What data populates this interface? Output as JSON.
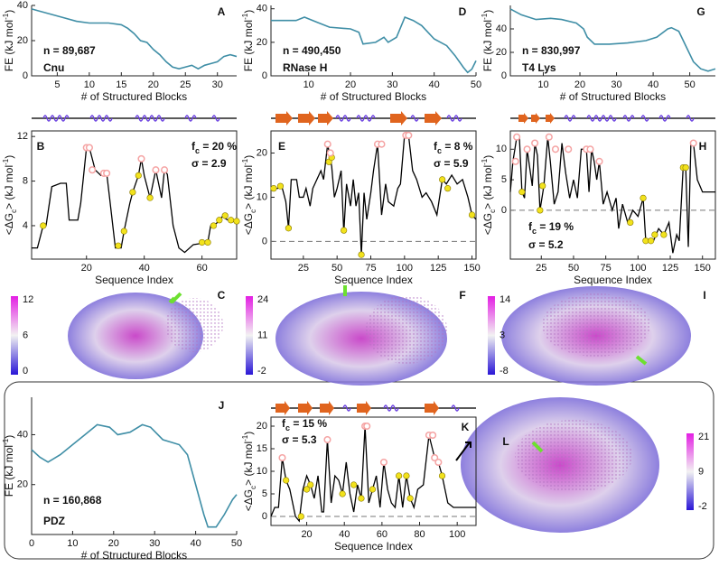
{
  "chart_data": [
    {
      "type": "line",
      "label": "A",
      "frame": "open",
      "color": "#3f8ea6",
      "xlabel": "# of Structured Blocks",
      "ylabel": [
        {
          "text": "FE (kJ mol"
        },
        {
          "text": "-1",
          "shift": "super"
        },
        {
          "text": ")"
        }
      ],
      "x": [
        1,
        2,
        4,
        6,
        8,
        10,
        13,
        15,
        16,
        17,
        18,
        19,
        20,
        21,
        22,
        23,
        24,
        25,
        26,
        27,
        28,
        29,
        30,
        31,
        32,
        33
      ],
      "values": [
        38,
        37,
        35,
        33,
        31,
        30,
        30,
        29,
        27,
        24,
        20,
        19,
        15,
        12,
        8,
        5,
        4,
        5,
        6,
        4,
        6,
        7,
        8,
        11,
        12,
        11
      ],
      "xlim": [
        1,
        33
      ],
      "xticks": [
        5,
        10,
        15,
        20,
        25,
        30
      ],
      "ylim": [
        0,
        40
      ],
      "yticks": [
        0,
        20,
        40
      ],
      "annotations": [
        {
          "text": "n = 89,687"
        },
        {
          "text": "Cnu"
        }
      ]
    },
    {
      "type": "line",
      "label": "D",
      "frame": "open",
      "color": "#3f8ea6",
      "xlabel": "# of Structured Blocks",
      "ylabel": [
        {
          "text": "FE (kJ mol"
        },
        {
          "text": "-1",
          "shift": "super"
        },
        {
          "text": ")"
        }
      ],
      "x": [
        1,
        7,
        9,
        12,
        15,
        20,
        22,
        23,
        26,
        28,
        29,
        31,
        33,
        35,
        37,
        40,
        43,
        45,
        47,
        48,
        49,
        50
      ],
      "values": [
        33,
        33,
        35,
        32,
        29,
        28,
        26,
        19,
        20,
        23,
        20,
        23,
        35,
        33,
        30,
        22,
        18,
        12,
        5,
        2,
        4,
        9
      ],
      "xlim": [
        1,
        50
      ],
      "xticks": [
        10,
        20,
        30,
        40,
        50
      ],
      "ylim": [
        0,
        42
      ],
      "yticks": [
        0,
        20,
        40
      ],
      "annotations": [
        {
          "text": "n = 490,450"
        },
        {
          "text": "RNase H"
        }
      ]
    },
    {
      "type": "line",
      "label": "G",
      "frame": "open",
      "color": "#3f8ea6",
      "xlabel": "# of Structured Blocks",
      "ylabel": [
        {
          "text": "FE (kJ mol"
        },
        {
          "text": "-1",
          "shift": "super"
        },
        {
          "text": ")"
        }
      ],
      "x": [
        1,
        4,
        8,
        12,
        15,
        19,
        21,
        22,
        24,
        28,
        33,
        38,
        41,
        44,
        45,
        47,
        49,
        51,
        53,
        55,
        57
      ],
      "values": [
        57,
        52,
        48,
        49,
        48,
        45,
        40,
        33,
        27,
        27,
        28,
        30,
        33,
        40,
        41,
        38,
        25,
        12,
        6,
        4,
        6
      ],
      "xlim": [
        1,
        57
      ],
      "xticks": [
        10,
        20,
        30,
        40,
        50
      ],
      "ylim": [
        0,
        60
      ],
      "yticks": [
        0,
        20,
        40
      ],
      "annotations": [
        {
          "text": "n = 830,997"
        },
        {
          "text": "T4 Lys"
        }
      ]
    },
    {
      "type": "line",
      "label": "B",
      "frame": "box",
      "color": "#000000",
      "xlabel": "Sequence Index",
      "ylabel": [
        {
          "text": "<ΔG"
        },
        {
          "text": "c",
          "shift": "sub"
        },
        {
          "text": "> (kJ mol"
        },
        {
          "text": "-1",
          "shift": "super"
        },
        {
          "text": ")"
        }
      ],
      "x": [
        1,
        3,
        5,
        6,
        8,
        11,
        13,
        14,
        17,
        18,
        20,
        21,
        23,
        25,
        27,
        28,
        30,
        32,
        33,
        35,
        36,
        38,
        39,
        40,
        42,
        44,
        46,
        47,
        48,
        50,
        52,
        54,
        57,
        62,
        63,
        65,
        67,
        69,
        72
      ],
      "values": [
        2,
        2,
        4,
        4,
        7.5,
        7.8,
        7.8,
        4.5,
        4.5,
        6,
        11,
        11,
        9,
        8.5,
        8.7,
        6.5,
        2,
        2,
        3.5,
        6,
        7,
        8.5,
        10,
        8.5,
        6.5,
        9,
        6.5,
        9,
        8.6,
        4,
        2,
        1.6,
        2.3,
        2.5,
        4,
        4.2,
        4.8,
        4.5,
        4.3
      ],
      "xlim": [
        1,
        72
      ],
      "xticks": [
        20,
        40,
        60
      ],
      "ylim": [
        1,
        12.5
      ],
      "yticks": [
        4,
        8,
        12
      ],
      "zero_line": false,
      "hot_points": {
        "color": "#f5a3a3",
        "x": [
          20,
          21,
          22,
          26,
          27,
          39,
          44,
          47
        ],
        "y": [
          11,
          11,
          9,
          8.7,
          8.7,
          10,
          9,
          9
        ]
      },
      "warm_points": {
        "color": "#f2e21c",
        "x": [
          5,
          31,
          33,
          36,
          38,
          42,
          60,
          62,
          64,
          66,
          68,
          70,
          72
        ],
        "y": [
          4,
          2.2,
          3.5,
          7,
          8.5,
          6.5,
          2.5,
          2.5,
          4,
          4.5,
          4.9,
          4.5,
          4.4
        ]
      },
      "annotations": [
        {
          "text": "f",
          "sub": "c",
          "after": " = 20 %"
        },
        {
          "text": "σ = 2.9"
        }
      ]
    },
    {
      "type": "line",
      "label": "E",
      "frame": "box",
      "color": "#000000",
      "xlabel": "Sequence Index",
      "ylabel": [
        {
          "text": "<ΔG"
        },
        {
          "text": "c",
          "shift": "sub"
        },
        {
          "text": "> (kJ mol"
        },
        {
          "text": "-1",
          "shift": "super"
        },
        {
          "text": ")"
        }
      ],
      "x": [
        1,
        6,
        9,
        12,
        14,
        16,
        20,
        22,
        25,
        27,
        30,
        32,
        35,
        38,
        40,
        43,
        46,
        48,
        50,
        53,
        55,
        57,
        60,
        62,
        64,
        66,
        68,
        70,
        72,
        75,
        77,
        80,
        83,
        86,
        88,
        92,
        95,
        97,
        100,
        103,
        106,
        109,
        113,
        116,
        120,
        124,
        128,
        131,
        135,
        139,
        143,
        147,
        150,
        153
      ],
      "values": [
        12,
        12,
        12.5,
        9,
        3,
        14,
        14,
        10,
        10,
        12,
        8,
        12,
        14,
        16,
        14,
        22,
        17,
        10,
        12,
        16,
        2,
        13,
        8,
        14,
        8,
        11,
        -3,
        11,
        5,
        11,
        16,
        22,
        6,
        13,
        9,
        8,
        12,
        13,
        24,
        24,
        16,
        14,
        10,
        11,
        9,
        6,
        14,
        13,
        15,
        13,
        14,
        10,
        6,
        5
      ],
      "xlim": [
        1,
        153
      ],
      "xticks": [
        25,
        50,
        75,
        100,
        125,
        150
      ],
      "ylim": [
        -4,
        25
      ],
      "yticks": [
        0,
        10,
        20
      ],
      "zero_line": true,
      "hot_points": {
        "color": "#f5a3a3",
        "x": [
          43,
          45,
          80,
          83,
          101,
          103
        ],
        "y": [
          22,
          20,
          22,
          22,
          24,
          24
        ]
      },
      "warm_points": {
        "color": "#f2e21c",
        "x": [
          3,
          8,
          14,
          44,
          46,
          55,
          68,
          128,
          132,
          150
        ],
        "y": [
          12,
          12.5,
          3,
          18,
          19,
          2.5,
          -3,
          14,
          12,
          6
        ]
      },
      "annotations": [
        {
          "text": "f",
          "sub": "c",
          "after": " = 8 %"
        },
        {
          "text": "σ = 5.9"
        }
      ]
    },
    {
      "type": "line",
      "label": "H",
      "frame": "box",
      "color": "#000000",
      "xlabel": "Sequence Index",
      "ylabel": [
        {
          "text": "<ΔG"
        },
        {
          "text": "c",
          "shift": "sub"
        },
        {
          "text": "> (kJ mol"
        },
        {
          "text": "-1",
          "shift": "super"
        },
        {
          "text": ")"
        }
      ],
      "x": [
        1,
        3,
        6,
        8,
        10,
        12,
        14,
        16,
        18,
        20,
        22,
        24,
        27,
        30,
        32,
        35,
        38,
        41,
        44,
        47,
        50,
        53,
        56,
        60,
        62,
        64,
        66,
        68,
        70,
        73,
        76,
        80,
        83,
        85,
        88,
        92,
        96,
        100,
        104,
        106,
        112,
        116,
        120,
        124,
        127,
        130,
        132,
        135,
        137,
        139,
        141,
        143,
        146,
        150,
        155,
        160
      ],
      "values": [
        3,
        8,
        12,
        12,
        3,
        2,
        10,
        7,
        4,
        11,
        9,
        0,
        4,
        12,
        8,
        1,
        3,
        11,
        6,
        2,
        5,
        2,
        10,
        10,
        3,
        10,
        8,
        5,
        8,
        1,
        3,
        0,
        2,
        -3,
        1,
        -2,
        0,
        -1,
        2,
        -5,
        -5,
        -3,
        -4,
        -2,
        -7,
        -4,
        -5,
        7,
        7,
        -6,
        11,
        11,
        5,
        3,
        3,
        3
      ],
      "xlim": [
        1,
        160
      ],
      "xticks": [
        25,
        50,
        75,
        100,
        125,
        150
      ],
      "ylim": [
        -8,
        13
      ],
      "yticks": [
        0,
        5,
        10
      ],
      "zero_line": true,
      "hot_points": {
        "color": "#f5a3a3",
        "x": [
          5,
          6,
          14,
          20,
          31,
          36,
          46,
          60,
          63,
          70,
          143
        ],
        "y": [
          8,
          12,
          10,
          11,
          12,
          10,
          10,
          10,
          10,
          8,
          11
        ]
      },
      "warm_points": {
        "color": "#f2e21c",
        "x": [
          10,
          24,
          26,
          94,
          104,
          106,
          110,
          113,
          120,
          135,
          137
        ],
        "y": [
          3,
          0,
          4,
          -2,
          2,
          -5,
          -5,
          -4,
          -4,
          7,
          7
        ]
      },
      "annotations": [
        {
          "text": "f",
          "sub": "c",
          "after": " = 19 %"
        },
        {
          "text": "σ = 5.2"
        }
      ]
    },
    {
      "type": "line",
      "label": "J",
      "frame": "open",
      "color": "#3f8ea6",
      "xlabel": "# of Structured Blocks",
      "ylabel": [
        {
          "text": "FE (kJ mol"
        },
        {
          "text": "-1",
          "shift": "super"
        },
        {
          "text": ")"
        }
      ],
      "x": [
        0,
        2,
        4,
        7,
        10,
        13,
        16,
        19,
        21,
        24,
        27,
        29,
        32,
        34,
        36,
        38,
        40,
        42,
        43,
        45,
        47,
        49,
        50
      ],
      "values": [
        34,
        31,
        29,
        32,
        36,
        40,
        44,
        43,
        40,
        41,
        44,
        43,
        38,
        37,
        36,
        32,
        20,
        8,
        3,
        3,
        8,
        14,
        16
      ],
      "xlim": [
        0,
        50
      ],
      "xticks": [
        0,
        10,
        20,
        30,
        40,
        50
      ],
      "ylim": [
        0,
        55
      ],
      "yticks": [
        20,
        40
      ],
      "annotations": [
        {
          "text": "n = 160,868"
        },
        {
          "text": "PDZ"
        }
      ]
    },
    {
      "type": "line",
      "label": "K",
      "frame": "box",
      "color": "#000000",
      "xlabel": "Sequence Index",
      "ylabel": [
        {
          "text": "<ΔG"
        },
        {
          "text": "c",
          "shift": "sub"
        },
        {
          "text": "> (kJ mol"
        },
        {
          "text": "-1",
          "shift": "super"
        },
        {
          "text": ")"
        }
      ],
      "x": [
        1,
        3,
        5,
        7,
        9,
        11,
        14,
        16,
        18,
        20,
        22,
        24,
        26,
        28,
        29,
        31,
        33,
        35,
        37,
        39,
        41,
        43,
        45,
        47,
        49,
        51,
        53,
        55,
        57,
        59,
        61,
        63,
        65,
        67,
        69,
        71,
        73,
        75,
        77,
        79,
        82,
        85,
        88,
        90,
        92,
        95,
        98,
        103,
        110
      ],
      "values": [
        0,
        2,
        2,
        13,
        8,
        6,
        0,
        -1,
        6,
        9,
        7,
        4,
        9,
        1,
        1,
        17,
        3,
        9,
        8,
        5,
        12,
        5,
        1,
        7,
        4,
        20,
        3,
        6,
        9,
        2,
        12,
        6,
        3,
        2,
        9,
        2,
        9,
        4,
        2,
        6,
        7,
        18,
        13,
        12,
        9,
        3,
        2,
        2,
        2
      ],
      "xlim": [
        1,
        110
      ],
      "xticks": [
        20,
        40,
        60,
        80,
        100
      ],
      "ylim": [
        -2,
        22
      ],
      "yticks": [
        0,
        5,
        10,
        15,
        20
      ],
      "zero_line": true,
      "hot_points": {
        "color": "#f5a3a3",
        "x": [
          7,
          31,
          51,
          52,
          61,
          85,
          87,
          88,
          90
        ],
        "y": [
          13,
          17,
          20,
          20,
          12,
          18,
          18,
          13,
          12
        ]
      },
      "warm_points": {
        "color": "#f2e21c",
        "x": [
          9,
          17,
          20,
          22,
          39,
          45,
          49,
          55,
          69,
          73,
          75,
          92
        ],
        "y": [
          8,
          0,
          6,
          7,
          5,
          7,
          4,
          6,
          9,
          9,
          4,
          9
        ]
      },
      "annotations": [
        {
          "text": "f",
          "sub": "c",
          "after": " = 15 %"
        },
        {
          "text": "σ = 5.3"
        }
      ]
    }
  ],
  "structures": [
    {
      "label": "C",
      "colorbar_ticks": [
        12,
        6,
        0
      ]
    },
    {
      "label": "F",
      "colorbar_ticks": [
        24,
        11,
        -2
      ]
    },
    {
      "label": "I",
      "colorbar_ticks": [
        14,
        3,
        -8
      ]
    },
    {
      "label": "L",
      "colorbar_ticks": [
        21,
        9,
        -2
      ]
    }
  ]
}
